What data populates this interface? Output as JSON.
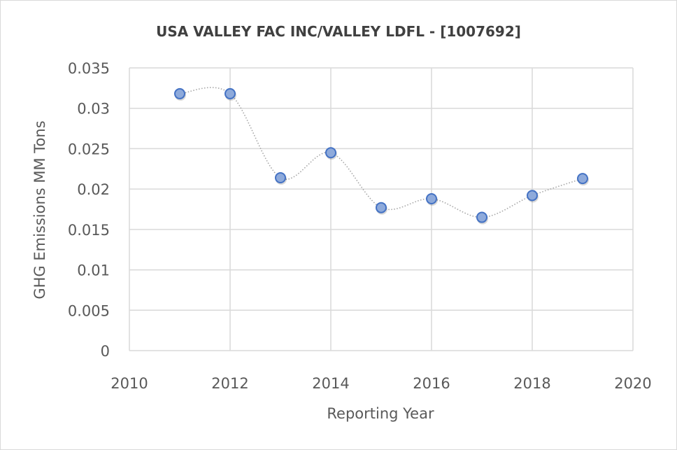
{
  "chart_data": {
    "type": "scatter",
    "title": "USA VALLEY FAC INC/VALLEY LDFL - [1007692]",
    "xlabel": "Reporting Year",
    "ylabel": "GHG Emissions MM Tons",
    "xlim": [
      2010,
      2020
    ],
    "ylim": [
      0,
      0.035
    ],
    "xticks": [
      "2010",
      "2012",
      "2014",
      "2016",
      "2018",
      "2020"
    ],
    "yticks": [
      "0",
      "0.005",
      "0.01",
      "0.015",
      "0.02",
      "0.025",
      "0.03",
      "0.035"
    ],
    "grid": true,
    "smoothed_line": true,
    "series": [
      {
        "name": "GHG Emissions",
        "x": [
          2011,
          2012,
          2013,
          2014,
          2015,
          2016,
          2017,
          2018,
          2019
        ],
        "y": [
          0.0318,
          0.0318,
          0.0214,
          0.0245,
          0.0177,
          0.0188,
          0.0165,
          0.0192,
          0.0213
        ]
      }
    ],
    "colors": {
      "marker_fill": "#8eaadb",
      "marker_stroke": "#4472c4",
      "line": "#a6a6a6",
      "grid": "#d9d9d9"
    }
  }
}
